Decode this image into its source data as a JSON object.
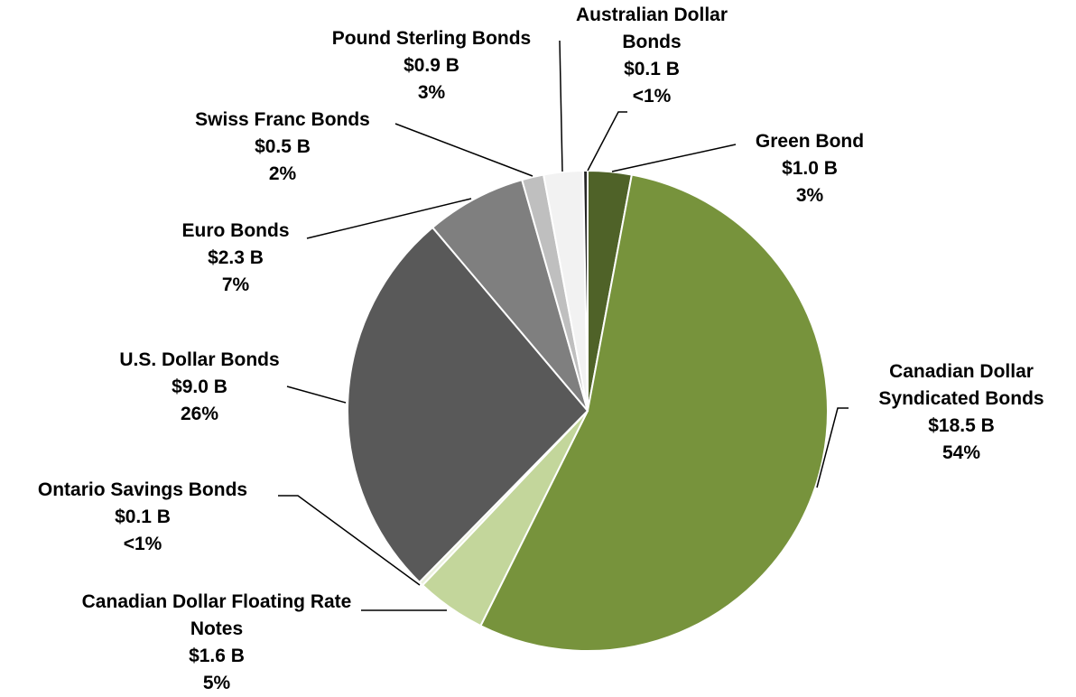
{
  "chart_data": {
    "type": "pie",
    "categories": [
      "Green Bond",
      "Canadian Dollar Syndicated Bonds",
      "Canadian Dollar Floating Rate Notes",
      "Ontario Savings Bonds",
      "U.S. Dollar Bonds",
      "Euro Bonds",
      "Swiss Franc Bonds",
      "Pound Sterling Bonds",
      "Australian Dollar Bonds"
    ],
    "values": [
      1.0,
      18.5,
      1.6,
      0.1,
      9.0,
      2.3,
      0.5,
      0.9,
      0.1
    ],
    "value_labels": [
      "$1.0 B",
      "$18.5 B",
      "$1.6 B",
      "$0.1 B",
      "$9.0 B",
      "$2.3 B",
      "$0.5 B",
      "$0.9 B",
      "$0.1 B"
    ],
    "percent_labels": [
      "3%",
      "54%",
      "5%",
      "<1%",
      "26%",
      "7%",
      "2%",
      "3%",
      "<1%"
    ],
    "colors": [
      "#4f6228",
      "#77933c",
      "#c3d69b",
      "#ebf1de",
      "#595959",
      "#7f7f7f",
      "#bfbfbf",
      "#f2f2f2",
      "#262626"
    ]
  }
}
